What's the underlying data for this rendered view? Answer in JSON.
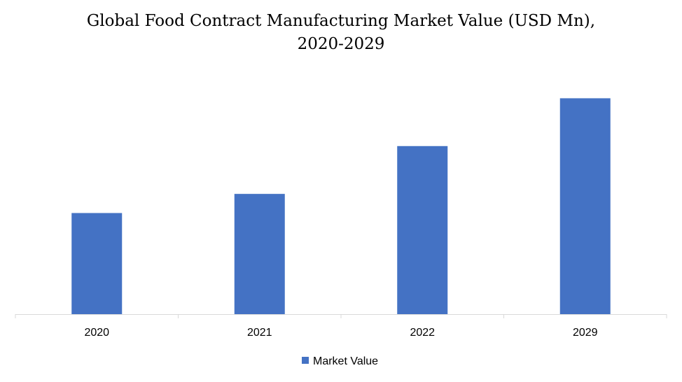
{
  "chart_data": {
    "type": "bar",
    "title_line1": "Global Food Contract Manufacturing Market Value (USD Mn),",
    "title_line2": "2020-2029",
    "categories": [
      "2020",
      "2021",
      "2022",
      "2029"
    ],
    "series": [
      {
        "name": "Market Value",
        "color": "#4472C4",
        "values": [
          148,
          176,
          246,
          316
        ]
      }
    ],
    "ylim": [
      0,
      340
    ],
    "xlabel": "",
    "ylabel": "",
    "grid": false,
    "legend": "bottom-center"
  }
}
